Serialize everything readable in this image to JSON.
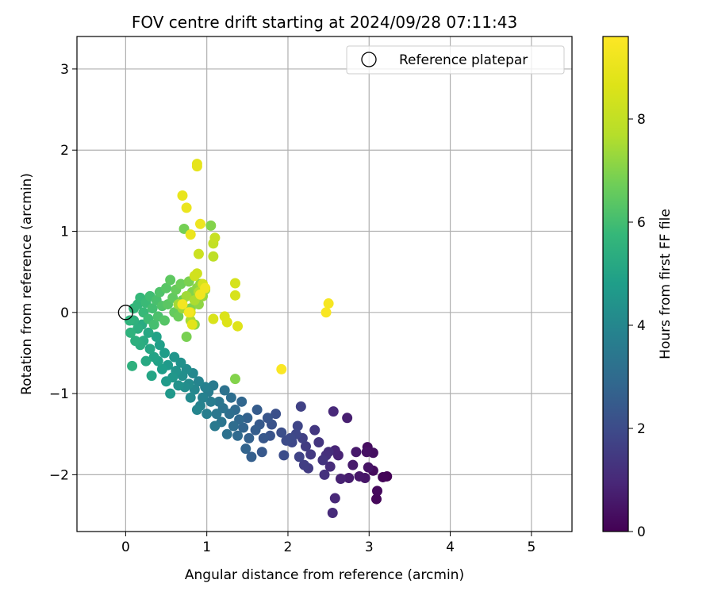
{
  "chart_data": {
    "type": "scatter",
    "title": "FOV centre drift starting at 2024/09/28 07:11:43",
    "xlabel": "Angular distance from reference (arcmin)",
    "ylabel": "Rotation from reference (arcmin)",
    "xlim": [
      -0.6,
      5.5
    ],
    "ylim": [
      -2.7,
      3.4
    ],
    "xticks": [
      0,
      1,
      2,
      3,
      4,
      5
    ],
    "yticks": [
      -2,
      -1,
      0,
      1,
      2,
      3
    ],
    "grid": true,
    "legend": {
      "position": "top-right",
      "entries": [
        {
          "label": "Reference platepar",
          "marker": "open-circle"
        }
      ]
    },
    "reference_point": {
      "x": 0,
      "y": 0
    },
    "colorbar": {
      "label": "Hours from first FF file",
      "colormap": "viridis",
      "range": [
        0,
        9.6
      ],
      "ticks": [
        0,
        2,
        4,
        6,
        8
      ]
    },
    "series": [
      {
        "color_by": "hours",
        "points": [
          {
            "x": 3.22,
            "y": -2.02,
            "c": 0.05
          },
          {
            "x": 3.17,
            "y": -2.03,
            "c": 0.1
          },
          {
            "x": 3.09,
            "y": -2.3,
            "c": 0.15
          },
          {
            "x": 3.1,
            "y": -2.2,
            "c": 0.2
          },
          {
            "x": 3.05,
            "y": -1.95,
            "c": 0.25
          },
          {
            "x": 2.98,
            "y": -1.66,
            "c": 0.3
          },
          {
            "x": 3.05,
            "y": -1.73,
            "c": 0.35
          },
          {
            "x": 2.97,
            "y": -1.72,
            "c": 0.4
          },
          {
            "x": 2.99,
            "y": -1.91,
            "c": 0.45
          },
          {
            "x": 2.95,
            "y": -2.04,
            "c": 0.5
          },
          {
            "x": 2.88,
            "y": -2.02,
            "c": 0.55
          },
          {
            "x": 2.84,
            "y": -1.72,
            "c": 0.6
          },
          {
            "x": 2.8,
            "y": -1.88,
            "c": 0.65
          },
          {
            "x": 2.75,
            "y": -2.04,
            "c": 0.7
          },
          {
            "x": 2.73,
            "y": -1.3,
            "c": 0.75
          },
          {
            "x": 2.65,
            "y": -2.05,
            "c": 0.8
          },
          {
            "x": 2.62,
            "y": -1.76,
            "c": 0.85
          },
          {
            "x": 2.58,
            "y": -1.7,
            "c": 0.9
          },
          {
            "x": 2.58,
            "y": -2.29,
            "c": 0.95
          },
          {
            "x": 2.56,
            "y": -1.22,
            "c": 1.0
          },
          {
            "x": 2.55,
            "y": -2.47,
            "c": 1.05
          },
          {
            "x": 2.52,
            "y": -1.9,
            "c": 1.1
          },
          {
            "x": 2.5,
            "y": -1.72,
            "c": 1.15
          },
          {
            "x": 2.47,
            "y": -1.76,
            "c": 1.2
          },
          {
            "x": 2.45,
            "y": -2.0,
            "c": 1.25
          },
          {
            "x": 2.43,
            "y": -1.82,
            "c": 1.3
          },
          {
            "x": 2.38,
            "y": -1.6,
            "c": 1.35
          },
          {
            "x": 2.33,
            "y": -1.45,
            "c": 1.4
          },
          {
            "x": 2.28,
            "y": -1.75,
            "c": 1.45
          },
          {
            "x": 2.25,
            "y": -1.92,
            "c": 1.5
          },
          {
            "x": 2.22,
            "y": -1.65,
            "c": 1.55
          },
          {
            "x": 2.2,
            "y": -1.88,
            "c": 1.6
          },
          {
            "x": 2.18,
            "y": -1.55,
            "c": 1.65
          },
          {
            "x": 2.16,
            "y": -1.16,
            "c": 1.7
          },
          {
            "x": 2.14,
            "y": -1.78,
            "c": 1.75
          },
          {
            "x": 2.12,
            "y": -1.4,
            "c": 1.8
          },
          {
            "x": 2.1,
            "y": -1.5,
            "c": 1.85
          },
          {
            "x": 2.05,
            "y": -1.6,
            "c": 1.9
          },
          {
            "x": 2.03,
            "y": -1.55,
            "c": 1.95
          },
          {
            "x": 1.98,
            "y": -1.58,
            "c": 2.0
          },
          {
            "x": 1.95,
            "y": -1.76,
            "c": 2.05
          },
          {
            "x": 1.92,
            "y": -1.48,
            "c": 2.1
          },
          {
            "x": 1.85,
            "y": -1.25,
            "c": 2.15
          },
          {
            "x": 1.8,
            "y": -1.38,
            "c": 2.2
          },
          {
            "x": 1.78,
            "y": -1.52,
            "c": 2.25
          },
          {
            "x": 1.75,
            "y": -1.3,
            "c": 2.3
          },
          {
            "x": 1.7,
            "y": -1.55,
            "c": 2.35
          },
          {
            "x": 1.68,
            "y": -1.72,
            "c": 2.4
          },
          {
            "x": 1.65,
            "y": -1.38,
            "c": 2.45
          },
          {
            "x": 1.62,
            "y": -1.2,
            "c": 2.5
          },
          {
            "x": 1.6,
            "y": -1.45,
            "c": 2.55
          },
          {
            "x": 1.55,
            "y": -1.78,
            "c": 2.6
          },
          {
            "x": 1.52,
            "y": -1.55,
            "c": 2.65
          },
          {
            "x": 1.5,
            "y": -1.3,
            "c": 2.7
          },
          {
            "x": 1.48,
            "y": -1.68,
            "c": 2.75
          },
          {
            "x": 1.45,
            "y": -1.42,
            "c": 2.8
          },
          {
            "x": 1.43,
            "y": -1.1,
            "c": 2.85
          },
          {
            "x": 1.4,
            "y": -1.32,
            "c": 2.9
          },
          {
            "x": 1.38,
            "y": -1.52,
            "c": 2.95
          },
          {
            "x": 1.35,
            "y": -1.2,
            "c": 3.0
          },
          {
            "x": 1.33,
            "y": -1.4,
            "c": 3.05
          },
          {
            "x": 1.3,
            "y": -1.05,
            "c": 3.1
          },
          {
            "x": 1.28,
            "y": -1.25,
            "c": 3.15
          },
          {
            "x": 1.25,
            "y": -1.5,
            "c": 3.2
          },
          {
            "x": 1.22,
            "y": -0.96,
            "c": 3.25
          },
          {
            "x": 1.2,
            "y": -1.18,
            "c": 3.3
          },
          {
            "x": 1.18,
            "y": -1.35,
            "c": 3.35
          },
          {
            "x": 1.15,
            "y": -1.1,
            "c": 3.4
          },
          {
            "x": 1.12,
            "y": -1.25,
            "c": 3.45
          },
          {
            "x": 1.1,
            "y": -1.4,
            "c": 3.5
          },
          {
            "x": 1.08,
            "y": -0.9,
            "c": 3.55
          },
          {
            "x": 1.05,
            "y": -1.1,
            "c": 3.6
          },
          {
            "x": 1.02,
            "y": -0.98,
            "c": 3.65
          },
          {
            "x": 1.0,
            "y": -1.25,
            "c": 3.7
          },
          {
            "x": 0.98,
            "y": -0.92,
            "c": 3.75
          },
          {
            "x": 0.95,
            "y": -1.05,
            "c": 3.8
          },
          {
            "x": 0.92,
            "y": -1.15,
            "c": 3.85
          },
          {
            "x": 0.9,
            "y": -0.85,
            "c": 3.9
          },
          {
            "x": 0.88,
            "y": -1.2,
            "c": 3.95
          },
          {
            "x": 0.85,
            "y": -0.95,
            "c": 4.0
          },
          {
            "x": 0.83,
            "y": -0.75,
            "c": 4.05
          },
          {
            "x": 0.8,
            "y": -1.05,
            "c": 4.1
          },
          {
            "x": 0.78,
            "y": -0.88,
            "c": 4.15
          },
          {
            "x": 0.75,
            "y": -0.7,
            "c": 4.2
          },
          {
            "x": 0.73,
            "y": -0.92,
            "c": 4.25
          },
          {
            "x": 0.7,
            "y": -0.78,
            "c": 4.3
          },
          {
            "x": 0.68,
            "y": -0.62,
            "c": 4.35
          },
          {
            "x": 0.65,
            "y": -0.9,
            "c": 4.4
          },
          {
            "x": 0.62,
            "y": -0.72,
            "c": 4.45
          },
          {
            "x": 0.6,
            "y": -0.55,
            "c": 4.5
          },
          {
            "x": 0.58,
            "y": -0.8,
            "c": 4.55
          },
          {
            "x": 0.55,
            "y": -1.0,
            "c": 4.6
          },
          {
            "x": 0.52,
            "y": -0.65,
            "c": 4.65
          },
          {
            "x": 0.5,
            "y": -0.85,
            "c": 4.7
          },
          {
            "x": 0.48,
            "y": -0.5,
            "c": 4.75
          },
          {
            "x": 0.45,
            "y": -0.7,
            "c": 4.8
          },
          {
            "x": 0.42,
            "y": -0.4,
            "c": 4.85
          },
          {
            "x": 0.4,
            "y": -0.6,
            "c": 4.9
          },
          {
            "x": 0.38,
            "y": -0.3,
            "c": 4.95
          },
          {
            "x": 0.35,
            "y": -0.55,
            "c": 5.0
          },
          {
            "x": 0.32,
            "y": -0.78,
            "c": 5.05
          },
          {
            "x": 0.3,
            "y": -0.45,
            "c": 5.1
          },
          {
            "x": 0.28,
            "y": -0.25,
            "c": 5.15
          },
          {
            "x": 0.25,
            "y": -0.6,
            "c": 5.2
          },
          {
            "x": 0.22,
            "y": -0.35,
            "c": 5.25
          },
          {
            "x": 0.2,
            "y": -0.15,
            "c": 5.3
          },
          {
            "x": 0.18,
            "y": -0.4,
            "c": 5.35
          },
          {
            "x": 0.15,
            "y": -0.2,
            "c": 5.4
          },
          {
            "x": 0.12,
            "y": -0.35,
            "c": 5.45
          },
          {
            "x": 0.1,
            "y": -0.1,
            "c": 5.5
          },
          {
            "x": 0.08,
            "y": -0.66,
            "c": 5.5
          },
          {
            "x": 0.06,
            "y": -0.25,
            "c": 5.55
          },
          {
            "x": 0.05,
            "y": -0.1,
            "c": 5.6
          },
          {
            "x": 0.1,
            "y": 0.05,
            "c": 5.65
          },
          {
            "x": 0.15,
            "y": 0.1,
            "c": 5.7
          },
          {
            "x": 0.18,
            "y": 0.18,
            "c": 5.75
          },
          {
            "x": 0.22,
            "y": 0.0,
            "c": 5.8
          },
          {
            "x": 0.25,
            "y": 0.12,
            "c": 5.85
          },
          {
            "x": 0.28,
            "y": -0.08,
            "c": 5.9
          },
          {
            "x": 0.3,
            "y": 0.2,
            "c": 5.95
          },
          {
            "x": 0.33,
            "y": 0.05,
            "c": 6.0
          },
          {
            "x": 0.35,
            "y": -0.15,
            "c": 6.05
          },
          {
            "x": 0.38,
            "y": 0.15,
            "c": 6.1
          },
          {
            "x": 0.4,
            "y": -0.05,
            "c": 6.15
          },
          {
            "x": 0.42,
            "y": 0.25,
            "c": 6.2
          },
          {
            "x": 0.45,
            "y": 0.08,
            "c": 6.25
          },
          {
            "x": 0.48,
            "y": -0.1,
            "c": 6.3
          },
          {
            "x": 0.5,
            "y": 0.3,
            "c": 6.35
          },
          {
            "x": 0.52,
            "y": 0.1,
            "c": 6.4
          },
          {
            "x": 0.55,
            "y": 0.4,
            "c": 6.45
          },
          {
            "x": 0.58,
            "y": 0.18,
            "c": 6.5
          },
          {
            "x": 0.6,
            "y": 0.0,
            "c": 6.55
          },
          {
            "x": 0.62,
            "y": 0.28,
            "c": 6.6
          },
          {
            "x": 0.65,
            "y": -0.05,
            "c": 6.65
          },
          {
            "x": 0.68,
            "y": 0.35,
            "c": 6.7
          },
          {
            "x": 0.7,
            "y": 0.15,
            "c": 6.75
          },
          {
            "x": 0.72,
            "y": 1.03,
            "c": 6.8
          },
          {
            "x": 0.75,
            "y": -0.3,
            "c": 6.85
          },
          {
            "x": 0.78,
            "y": 0.38,
            "c": 6.9
          },
          {
            "x": 0.8,
            "y": 0.05,
            "c": 6.95
          },
          {
            "x": 0.82,
            "y": 0.25,
            "c": 7.0
          },
          {
            "x": 1.05,
            "y": 1.07,
            "c": 7.0
          },
          {
            "x": 1.35,
            "y": -0.82,
            "c": 7.0
          },
          {
            "x": 0.85,
            "y": -0.15,
            "c": 7.05
          },
          {
            "x": 0.88,
            "y": 0.3,
            "c": 7.1
          },
          {
            "x": 0.9,
            "y": 0.1,
            "c": 7.15
          },
          {
            "x": 0.92,
            "y": 0.35,
            "c": 7.2
          },
          {
            "x": 0.95,
            "y": 0.2,
            "c": 7.25
          },
          {
            "x": 0.98,
            "y": 0.28,
            "c": 7.3
          },
          {
            "x": 0.7,
            "y": 0.05,
            "c": 7.35
          },
          {
            "x": 0.75,
            "y": 0.2,
            "c": 7.4
          },
          {
            "x": 0.65,
            "y": 0.1,
            "c": 7.45
          },
          {
            "x": 0.8,
            "y": -0.1,
            "c": 7.5
          },
          {
            "x": 0.85,
            "y": 0.15,
            "c": 7.55
          },
          {
            "x": 0.9,
            "y": 0.25,
            "c": 7.6
          },
          {
            "x": 1.08,
            "y": 0.69,
            "c": 7.9
          },
          {
            "x": 1.08,
            "y": 0.85,
            "c": 8.0
          },
          {
            "x": 1.1,
            "y": 0.92,
            "c": 8.1
          },
          {
            "x": 0.9,
            "y": 0.72,
            "c": 8.2
          },
          {
            "x": 0.88,
            "y": 0.48,
            "c": 8.3
          },
          {
            "x": 0.85,
            "y": 0.45,
            "c": 8.35
          },
          {
            "x": 0.95,
            "y": 0.35,
            "c": 8.4
          },
          {
            "x": 1.35,
            "y": 0.36,
            "c": 8.45
          },
          {
            "x": 1.35,
            "y": 0.21,
            "c": 8.5
          },
          {
            "x": 1.08,
            "y": -0.08,
            "c": 8.55
          },
          {
            "x": 1.22,
            "y": -0.05,
            "c": 8.6
          },
          {
            "x": 1.25,
            "y": -0.12,
            "c": 8.65
          },
          {
            "x": 1.38,
            "y": -0.17,
            "c": 8.7
          },
          {
            "x": 0.8,
            "y": 0.0,
            "c": 8.75
          },
          {
            "x": 0.82,
            "y": -0.15,
            "c": 8.8
          },
          {
            "x": 0.88,
            "y": 1.83,
            "c": 8.85
          },
          {
            "x": 0.88,
            "y": 1.8,
            "c": 8.9
          },
          {
            "x": 0.7,
            "y": 1.44,
            "c": 9.0
          },
          {
            "x": 0.75,
            "y": 1.29,
            "c": 9.05
          },
          {
            "x": 0.8,
            "y": 0.96,
            "c": 9.1
          },
          {
            "x": 0.92,
            "y": 1.09,
            "c": 9.15
          },
          {
            "x": 0.98,
            "y": 0.3,
            "c": 9.2
          },
          {
            "x": 0.92,
            "y": 0.22,
            "c": 9.25
          },
          {
            "x": 0.7,
            "y": 0.1,
            "c": 9.3
          },
          {
            "x": 0.78,
            "y": 0.0,
            "c": 9.35
          },
          {
            "x": 2.5,
            "y": 0.11,
            "c": 9.4
          },
          {
            "x": 2.47,
            "y": 0.0,
            "c": 9.45
          },
          {
            "x": 1.92,
            "y": -0.7,
            "c": 9.5
          }
        ]
      }
    ]
  }
}
